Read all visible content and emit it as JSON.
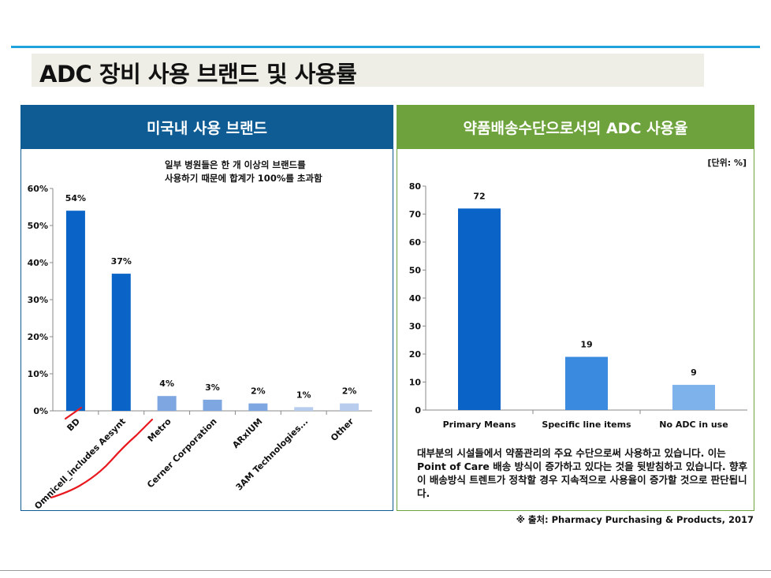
{
  "title": "ADC 장비 사용 브랜드 및 사용률",
  "left_panel": {
    "header": "미국내 사용 브랜드",
    "note_line1": "일부 병원들은 한 개 이상의 브랜드를",
    "note_line2": "사용하기 때문에 합계가 100%를 초과함"
  },
  "right_panel": {
    "header": "약품배송수단으로서의 ADC 사용율",
    "unit": "[단위: %]",
    "description": "대부분의 시설들에서 약품관리의 주요 수단으로써 사용하고 있습니다. 이는 Point of Care 배송 방식이 증가하고 있다는 것을 뒷받침하고 있습니다.   향후 이 배송방식 트렌트가 정착할 경우 지속적으로 사용율이 증가할 것으로 판단됩니다."
  },
  "source": "※ 출처: Pharmacy Purchasing & Products, 2017",
  "chart_data": [
    {
      "type": "bar",
      "categories": [
        "BD",
        "Omnicell_includes Aesynt",
        "Metro",
        "Cerner Corporation",
        "ARxIUM",
        "3AM Technologies...",
        "Other"
      ],
      "values": [
        54,
        37,
        4,
        3,
        2,
        1,
        2
      ],
      "value_labels": [
        "54%",
        "37%",
        "4%",
        "3%",
        "2%",
        "1%",
        "2%"
      ],
      "bar_colors": [
        "#0a64c8",
        "#0a64c8",
        "#7ea6e0",
        "#7ea6e0",
        "#7ea6e0",
        "#b8cdee",
        "#b8cdee"
      ],
      "ylim": [
        0,
        60
      ],
      "yticks": [
        "0%",
        "10%",
        "20%",
        "30%",
        "40%",
        "50%",
        "60%"
      ],
      "tick_values": [
        0,
        10,
        20,
        30,
        40,
        50,
        60
      ],
      "grid": false,
      "legend": "none",
      "annotation": "red hand-drawn underline under BD and Omnicell labels"
    },
    {
      "type": "bar",
      "categories": [
        "Primary Means",
        "Specific line items",
        "No ADC in use"
      ],
      "values": [
        72,
        19,
        9
      ],
      "value_labels": [
        "72",
        "19",
        "9"
      ],
      "bar_colors": [
        "#0a64c8",
        "#3a8be0",
        "#7eb2ea"
      ],
      "ylim": [
        0,
        80
      ],
      "yticks": [
        "0",
        "10",
        "20",
        "30",
        "40",
        "50",
        "60",
        "70",
        "80"
      ],
      "tick_values": [
        0,
        10,
        20,
        30,
        40,
        50,
        60,
        70,
        80
      ],
      "grid": false,
      "legend": "none"
    }
  ]
}
